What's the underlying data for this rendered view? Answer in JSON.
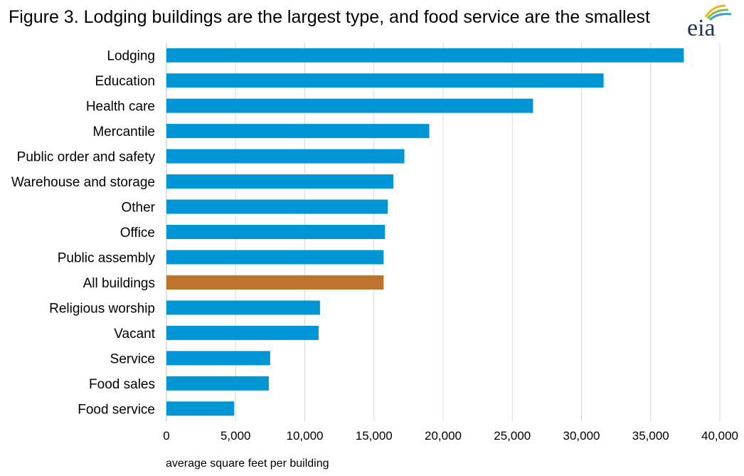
{
  "title": "Figure 3. Lodging buildings are the largest type, and food service are the smallest",
  "logo_text": "eia",
  "colors": {
    "bar": "#0096d6",
    "highlight": "#bd732b",
    "grid": "#d9d9d9"
  },
  "chart_data": {
    "type": "bar",
    "orientation": "horizontal",
    "title": "Figure 3. Lodging buildings are the largest type, and food service are the smallest",
    "categories": [
      "Lodging",
      "Education",
      "Health care",
      "Mercantile",
      "Public order and safety",
      "Warehouse and storage",
      "Other",
      "Office",
      "Public assembly",
      "All buildings",
      "Religious worship",
      "Vacant",
      "Service",
      "Food sales",
      "Food service"
    ],
    "values": [
      37400,
      31600,
      26500,
      19000,
      17200,
      16400,
      16000,
      15800,
      15700,
      15700,
      11100,
      11000,
      7500,
      7400,
      4900
    ],
    "highlight_category": "All buildings",
    "xlabel": "average square feet per building",
    "ylabel": "",
    "xlim": [
      0,
      40000
    ],
    "xticks": [
      0,
      5000,
      10000,
      15000,
      20000,
      25000,
      30000,
      35000,
      40000
    ],
    "xtick_labels": [
      "0",
      "5,000",
      "10,000",
      "15,000",
      "20,000",
      "25,000",
      "30,000",
      "35,000",
      "40,000"
    ],
    "grid": "vertical"
  }
}
